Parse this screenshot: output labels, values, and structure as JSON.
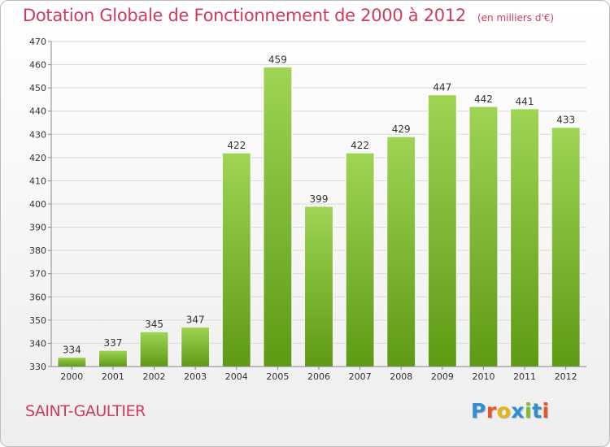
{
  "title": "Dotation Globale de Fonctionnement de 2000 à 2012",
  "subtitle": "(en milliers d'€)",
  "city": "SAINT-GAULTIER",
  "logo": "Proxiti",
  "colors": {
    "title": "#cf3b5d",
    "bar_top": "#9fd454",
    "bar_bottom": "#5e9a14",
    "logo": [
      "#2f8fd1",
      "#e8542c",
      "#e8b410",
      "#2f8fd1",
      "#7bbd2a",
      "#2f8fd1",
      "#e8542c"
    ]
  },
  "chart_data": {
    "type": "bar",
    "categories": [
      "2000",
      "2001",
      "2002",
      "2003",
      "2004",
      "2005",
      "2006",
      "2007",
      "2008",
      "2009",
      "2010",
      "2011",
      "2012"
    ],
    "values": [
      334,
      337,
      345,
      347,
      422,
      459,
      399,
      422,
      429,
      447,
      442,
      441,
      433
    ],
    "value_labels": [
      "334",
      "337",
      "345",
      "347",
      "422",
      "459",
      "399",
      "422",
      "429",
      "447",
      "442",
      "441",
      "433"
    ],
    "ylim": [
      330,
      470
    ],
    "yticks": [
      330,
      340,
      350,
      360,
      370,
      380,
      390,
      400,
      410,
      420,
      430,
      440,
      450,
      460,
      470
    ],
    "ytick_labels": [
      "330",
      "340",
      "350",
      "360",
      "370",
      "380",
      "390",
      "400",
      "410",
      "420",
      "430",
      "440",
      "450",
      "460",
      "470"
    ],
    "grid": true,
    "xlabel": "",
    "ylabel": ""
  }
}
